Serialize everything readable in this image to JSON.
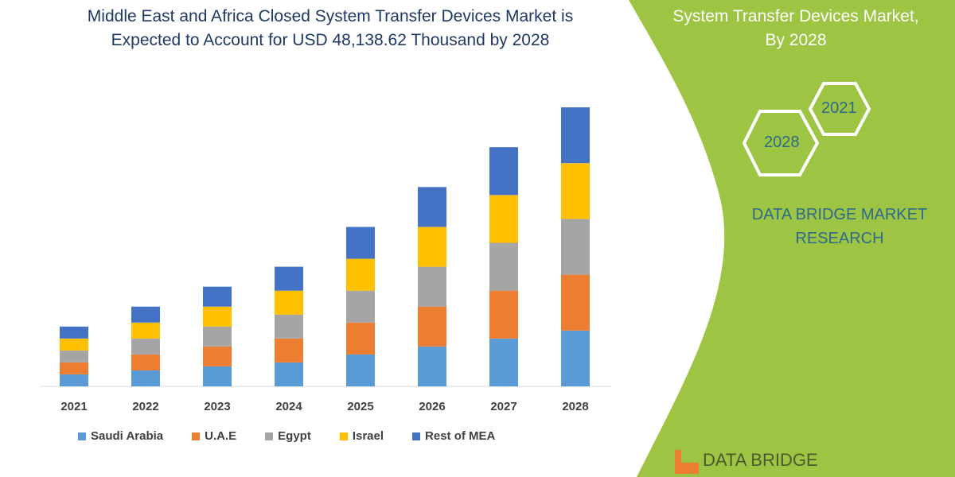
{
  "title_lines": [
    "Middle East and Africa Closed System Transfer Devices Market is",
    "Expected to Account for USD 48,138.62 Thousand by 2028"
  ],
  "side_panel": {
    "title_lines": [
      "System Transfer Devices Market,",
      "By 2028"
    ],
    "hex_years": [
      "2021",
      "2028"
    ],
    "brand_lines": [
      "DATA BRIDGE MARKET",
      "RESEARCH"
    ],
    "logo_text": "DATA BRIDGE",
    "color": "#9dc443"
  },
  "chart_data": {
    "type": "bar",
    "stacked": true,
    "categories": [
      "2021",
      "2022",
      "2023",
      "2024",
      "2025",
      "2026",
      "2027",
      "2028"
    ],
    "series": [
      {
        "name": "Saudi Arabia",
        "color": "#5b9bd5",
        "values": [
          15,
          20,
          25,
          30,
          40,
          50,
          60,
          70
        ]
      },
      {
        "name": "U.A.E",
        "color": "#ed7d31",
        "values": [
          15,
          20,
          25,
          30,
          40,
          50,
          60,
          70
        ]
      },
      {
        "name": "Egypt",
        "color": "#a5a5a5",
        "values": [
          15,
          20,
          25,
          30,
          40,
          50,
          60,
          70
        ]
      },
      {
        "name": "Israel",
        "color": "#ffc000",
        "values": [
          15,
          20,
          25,
          30,
          40,
          50,
          60,
          70
        ]
      },
      {
        "name": "Rest of MEA",
        "color": "#4472c4",
        "values": [
          15,
          20,
          25,
          30,
          40,
          50,
          60,
          70
        ]
      }
    ],
    "ylim": [
      0,
      350
    ],
    "y_axis_shown": false,
    "grid": false,
    "legend_position": "bottom"
  }
}
